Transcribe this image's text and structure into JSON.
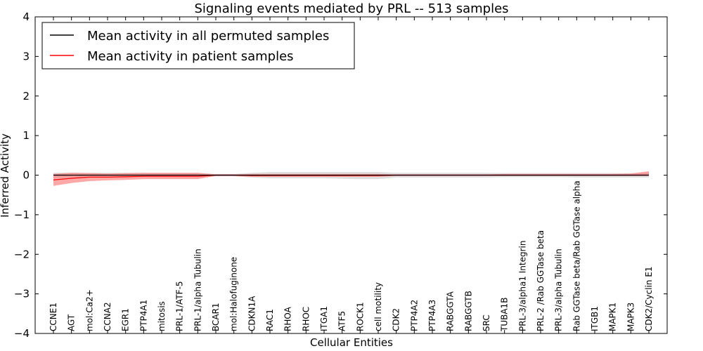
{
  "chart_data": {
    "type": "line",
    "title": "Signaling events mediated by PRL -- 513 samples",
    "xlabel": "Cellular Entities",
    "ylabel": "Inferred Activity",
    "ylim": [
      -4,
      4
    ],
    "yticks": [
      -4,
      -3,
      -2,
      -1,
      0,
      1,
      2,
      3,
      4
    ],
    "ytick_labels": [
      "−4",
      "−3",
      "−2",
      "−1",
      "0",
      "1",
      "2",
      "3",
      "4"
    ],
    "legend_position": "top-left",
    "categories": [
      "CCNE1",
      "AGT",
      "mol:Ca2+",
      "CCNA2",
      "EGR1",
      "PTP4A1",
      "mitosis",
      "PRL-1/ATF-5",
      "PRL-1/alpha Tubulin",
      "BCAR1",
      "mol:Halofuginone",
      "CDKN1A",
      "RAC1",
      "RHOA",
      "RHOC",
      "ITGA1",
      "ATF5",
      "ROCK1",
      "cell motility",
      "CDK2",
      "PTP4A2",
      "PTP4A3",
      "RABGGTA",
      "RABGGTB",
      "SRC",
      "TUBA1B",
      "PRL-3/alpha1 Integrin",
      "PRL-2 /Rab GGTase beta",
      "PRL-3/alpha Tubulin",
      "Rab GGTase beta/Rab GGTase alpha",
      "ITGB1",
      "MAPK1",
      "MAPK3",
      "CDK2/Cyclin E1"
    ],
    "series": [
      {
        "name": "Mean activity in all permuted samples",
        "color": "#000000",
        "band_color": "#c8c8c8",
        "values": [
          0.0,
          0.0,
          0.0,
          0.0,
          0.0,
          0.0,
          0.0,
          0.0,
          0.0,
          0.0,
          0.0,
          0.0,
          0.0,
          0.0,
          0.0,
          0.0,
          0.0,
          0.0,
          0.0,
          0.0,
          0.0,
          0.0,
          0.0,
          0.0,
          0.0,
          0.0,
          0.0,
          0.0,
          0.0,
          0.0,
          0.0,
          0.0,
          0.0,
          0.0
        ],
        "lower": [
          -0.06,
          -0.06,
          -0.06,
          -0.06,
          -0.06,
          -0.05,
          -0.05,
          -0.05,
          -0.05,
          -0.03,
          -0.03,
          -0.06,
          -0.08,
          -0.08,
          -0.08,
          -0.08,
          -0.09,
          -0.1,
          -0.1,
          -0.06,
          -0.06,
          -0.06,
          -0.06,
          -0.06,
          -0.06,
          -0.05,
          -0.05,
          -0.05,
          -0.05,
          -0.06,
          -0.06,
          -0.06,
          -0.06,
          -0.06
        ],
        "upper": [
          0.06,
          0.06,
          0.06,
          0.06,
          0.06,
          0.05,
          0.05,
          0.05,
          0.05,
          0.03,
          0.03,
          0.06,
          0.08,
          0.08,
          0.08,
          0.08,
          0.08,
          0.08,
          0.08,
          0.06,
          0.06,
          0.06,
          0.06,
          0.06,
          0.06,
          0.05,
          0.05,
          0.05,
          0.05,
          0.05,
          0.05,
          0.05,
          0.05,
          0.06
        ]
      },
      {
        "name": "Mean activity in patient samples",
        "color": "#ff0000",
        "band_color": "#ff6060",
        "values": [
          -0.12,
          -0.08,
          -0.05,
          -0.05,
          -0.04,
          -0.03,
          -0.03,
          -0.03,
          -0.03,
          0.0,
          0.0,
          -0.01,
          -0.01,
          -0.01,
          -0.01,
          -0.01,
          -0.01,
          -0.01,
          -0.01,
          0.0,
          0.0,
          0.0,
          0.0,
          0.0,
          0.0,
          0.0,
          0.0,
          0.0,
          0.0,
          0.0,
          0.0,
          0.0,
          0.0,
          0.0
        ],
        "lower": [
          -0.27,
          -0.2,
          -0.15,
          -0.13,
          -0.12,
          -0.1,
          -0.1,
          -0.1,
          -0.1,
          -0.02,
          -0.02,
          -0.04,
          -0.04,
          -0.04,
          -0.04,
          -0.04,
          -0.04,
          -0.04,
          -0.04,
          -0.02,
          -0.02,
          -0.02,
          -0.02,
          -0.02,
          -0.02,
          -0.02,
          -0.02,
          -0.02,
          -0.02,
          -0.02,
          -0.02,
          -0.02,
          -0.02,
          -0.02
        ],
        "upper": [
          0.03,
          0.06,
          0.05,
          0.04,
          0.05,
          0.06,
          0.06,
          0.06,
          0.06,
          0.02,
          0.02,
          0.03,
          0.03,
          0.03,
          0.03,
          0.03,
          0.03,
          0.03,
          0.03,
          0.02,
          0.02,
          0.02,
          0.02,
          0.02,
          0.02,
          0.03,
          0.03,
          0.03,
          0.03,
          0.03,
          0.03,
          0.03,
          0.04,
          0.1
        ]
      }
    ]
  }
}
